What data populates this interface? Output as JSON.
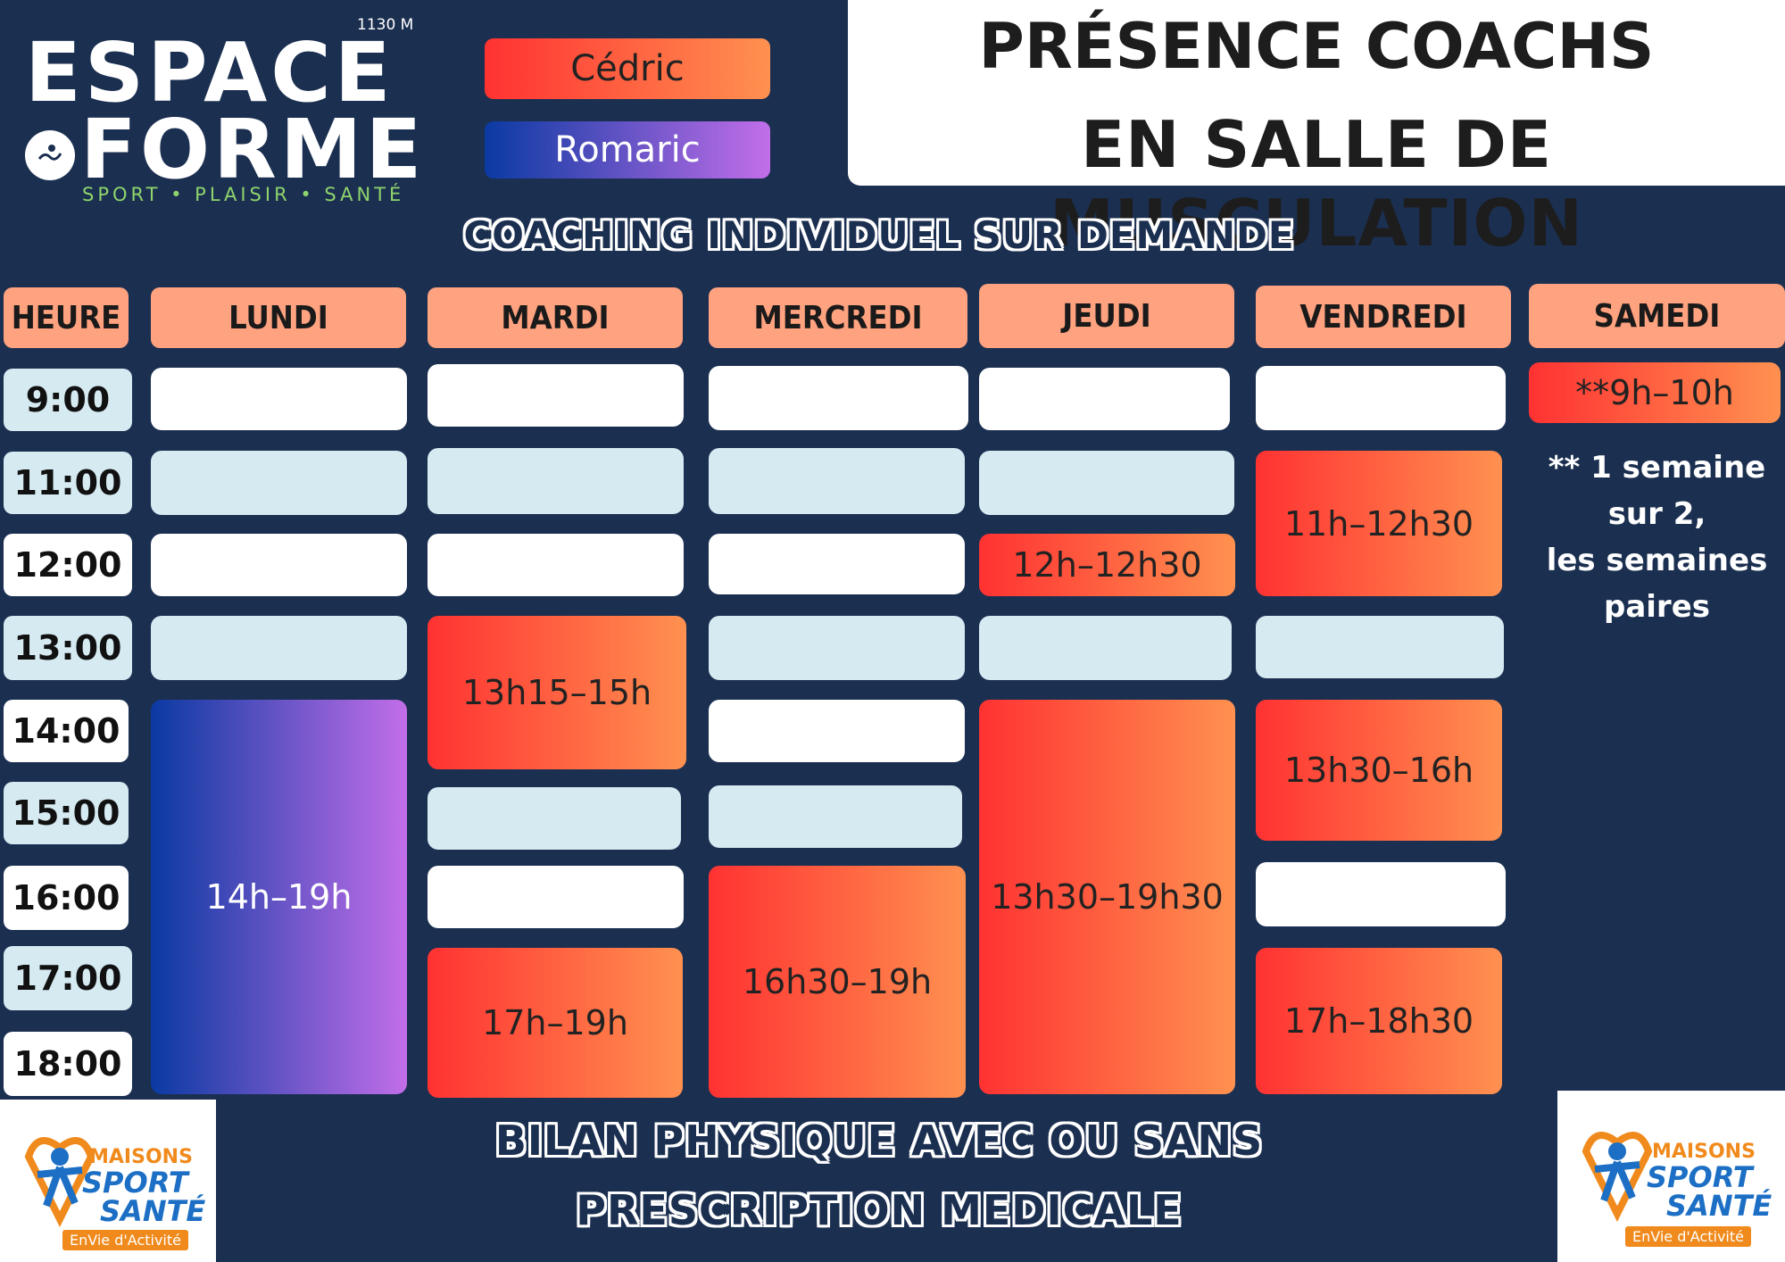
{
  "logo": {
    "altitude": "1130 M",
    "line1": "ESPACE",
    "line2": "FORME",
    "tagline": "SPORT • PLAISIR • SANTÉ"
  },
  "legend": {
    "coach1": "Cédric",
    "coach2": "Romaric"
  },
  "title": {
    "line1": "PRÉSENCE COACHS",
    "line2": "EN SALLE DE MUSCULATION"
  },
  "subtitle": "COACHING INDIVIDUEL SUR DEMANDE",
  "footer": {
    "line1": "BILAN PHYSIQUE AVEC OU SANS",
    "line2": "PRESCRIPTION MEDICALE"
  },
  "headers": {
    "hour": "HEURE",
    "mon": "LUNDI",
    "tue": "MARDI",
    "wed": "MERCREDI",
    "thu": "JEUDI",
    "fri": "VENDREDI",
    "sat": "SAMEDI"
  },
  "hours": [
    "9:00",
    "11:00",
    "12:00",
    "13:00",
    "14:00",
    "15:00",
    "16:00",
    "17:00",
    "18:00"
  ],
  "slots": {
    "mon_1": "14h–19h",
    "tue_1": "13h15–15h",
    "tue_2": "17h–19h",
    "wed_1": "16h30–19h",
    "thu_1": "12h–12h30",
    "thu_2": "13h30–19h30",
    "fri_1": "11h–12h30",
    "fri_2": "13h30–16h",
    "fri_3": "17h–18h30",
    "sat_1": "**9h–10h"
  },
  "note": {
    "line1": "** 1 semaine",
    "line2": "sur 2,",
    "line3": "les semaines",
    "line4": "paires"
  },
  "badge": {
    "line1": "MAISONS",
    "line2": "SPORT",
    "line3": "SANTÉ",
    "line4": "EnVie d'Activité"
  },
  "colors": {
    "background": "#1b2f50",
    "header": "#ffa27f",
    "cedric_start": "#ff3232",
    "cedric_end": "#ff9150",
    "romaric_start": "#0a3aa2",
    "romaric_end": "#c26ee9",
    "light_cell": "#d6eaf2"
  }
}
